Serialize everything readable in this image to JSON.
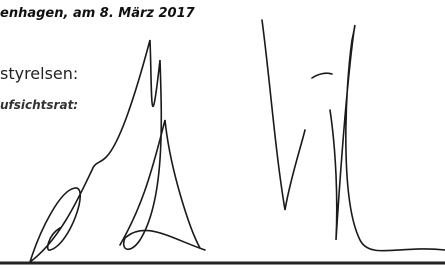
{
  "date_line": "enhagen, am 8. März 2017",
  "board_label": "styrelsen:",
  "board_label_de": "ufsichtsrat:"
}
